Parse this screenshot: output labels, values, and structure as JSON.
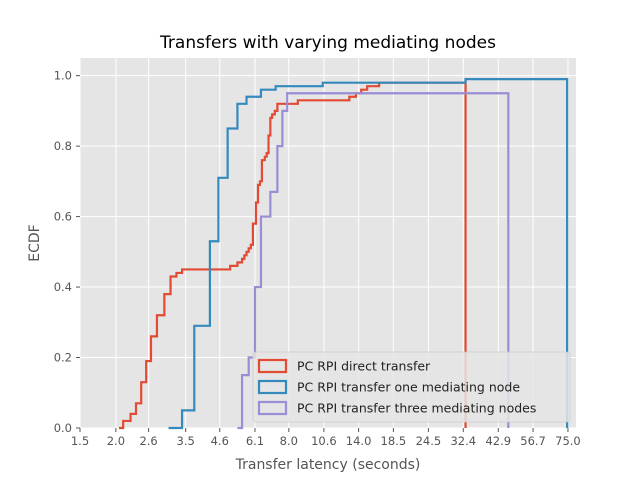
{
  "chart_data": {
    "type": "line",
    "title": "Transfers with varying mediating nodes",
    "xlabel": "Transfer latency (seconds)",
    "ylabel": "ECDF",
    "x_scale": "log",
    "xlim": [
      1.5,
      80
    ],
    "ylim": [
      0,
      1.05
    ],
    "x_ticks": [
      1.5,
      2.0,
      2.6,
      3.5,
      4.6,
      6.1,
      8.0,
      10.6,
      14.0,
      18.5,
      24.5,
      32.4,
      42.9,
      56.7,
      75.0
    ],
    "x_tick_labels": [
      "1.5",
      "2.0",
      "2.6",
      "3.5",
      "4.6",
      "6.1",
      "8.0",
      "10.6",
      "14.0",
      "18.5",
      "24.5",
      "32.4",
      "42.9",
      "56.7",
      "75.0"
    ],
    "y_ticks": [
      0.0,
      0.2,
      0.4,
      0.6,
      0.8,
      1.0
    ],
    "y_tick_labels": [
      "0.0",
      "0.2",
      "0.4",
      "0.6",
      "0.8",
      "1.0"
    ],
    "grid": true,
    "legend_position": "lower-right",
    "series": [
      {
        "name": "PC RPI direct transfer",
        "color": "#E24A33",
        "x": [
          2.05,
          2.12,
          2.25,
          2.35,
          2.45,
          2.55,
          2.65,
          2.78,
          2.95,
          3.1,
          3.25,
          3.4,
          3.6,
          5.0,
          5.3,
          5.5,
          5.6,
          5.7,
          5.8,
          5.9,
          6.0,
          6.15,
          6.25,
          6.35,
          6.45,
          6.6,
          6.7,
          6.8,
          6.9,
          7.0,
          7.15,
          7.3,
          7.5,
          7.8,
          8.2,
          8.6,
          9.0,
          9.5,
          10.0,
          10.5,
          11.0,
          12.0,
          13.0,
          13.7,
          14.3,
          15.0,
          16.5,
          29.0,
          33.0
        ],
        "y": [
          0.0,
          0.02,
          0.04,
          0.07,
          0.13,
          0.19,
          0.26,
          0.32,
          0.38,
          0.43,
          0.44,
          0.45,
          0.45,
          0.46,
          0.47,
          0.48,
          0.49,
          0.5,
          0.51,
          0.52,
          0.58,
          0.64,
          0.69,
          0.7,
          0.76,
          0.77,
          0.78,
          0.83,
          0.88,
          0.89,
          0.9,
          0.92,
          0.92,
          0.92,
          0.92,
          0.93,
          0.93,
          0.93,
          0.93,
          0.93,
          0.93,
          0.93,
          0.94,
          0.95,
          0.96,
          0.97,
          0.98,
          0.98,
          0.0
        ]
      },
      {
        "name": "PC RPI transfer one mediating node",
        "color": "#348ABD",
        "x": [
          3.05,
          3.4,
          3.75,
          4.25,
          4.55,
          4.9,
          5.3,
          5.7,
          6.4,
          7.2,
          10.5,
          33.0,
          73.0,
          74.5
        ],
        "y": [
          0.0,
          0.05,
          0.29,
          0.53,
          0.71,
          0.85,
          0.92,
          0.94,
          0.96,
          0.97,
          0.98,
          0.99,
          0.99,
          0.0
        ]
      },
      {
        "name": "PC RPI transfer three mediating nodes",
        "color": "#988ED5",
        "x": [
          5.3,
          5.5,
          5.8,
          6.1,
          6.4,
          6.9,
          7.3,
          7.6,
          7.9,
          8.4,
          46.5
        ],
        "y": [
          0.0,
          0.15,
          0.2,
          0.4,
          0.6,
          0.67,
          0.8,
          0.9,
          0.95,
          0.95,
          0.0
        ]
      }
    ]
  }
}
